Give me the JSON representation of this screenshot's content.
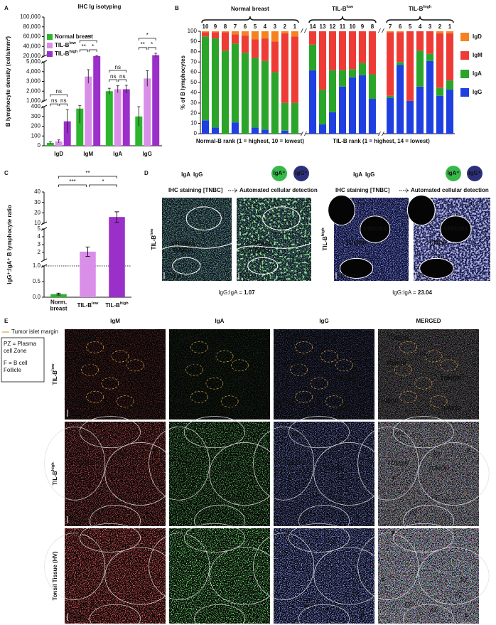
{
  "chart_data": [
    {
      "type": "bar",
      "panel_label": "A",
      "title": "IHC Ig isotyping",
      "y_label": "B lymphocyte density (cells/mm²)",
      "categories": [
        "IgD",
        "IgM",
        "IgA",
        "IgG"
      ],
      "series": [
        {
          "name": {
            "text": "Normal breast"
          },
          "color": "#2db52d",
          "values": [
            30,
            380,
            2000,
            300
          ],
          "errors": [
            10,
            150,
            300,
            100
          ]
        },
        {
          "name": {
            "text": "TIL-B",
            "sup": "low"
          },
          "color": "#d98fe8",
          "values": [
            45,
            3500,
            2200,
            3300
          ],
          "errors": [
            15,
            700,
            350,
            800
          ]
        },
        {
          "name": {
            "text": "TIL-B",
            "sup": "high"
          },
          "color": "#9b2fc9",
          "values": [
            250,
            20000,
            2200,
            22000
          ],
          "errors": [
            120,
            1500,
            400,
            4000
          ]
        }
      ],
      "ylim": [
        0,
        100000
      ],
      "ysegments": [
        [
          0,
          400
        ],
        [
          1000,
          5000
        ],
        [
          20000,
          100000
        ]
      ],
      "yticks": [
        0,
        100,
        200,
        300,
        400,
        {
          "value": 1000,
          "label": "1,000"
        },
        {
          "value": 2000,
          "label": "2,000"
        },
        {
          "value": 3000,
          "label": "3,000"
        },
        {
          "value": 4000,
          "label": "4,000"
        },
        {
          "value": 5000,
          "label": "5,000"
        },
        {
          "value": 20000,
          "label": "20,000"
        },
        {
          "value": 40000,
          "label": "40,000"
        },
        {
          "value": 60000,
          "label": "60,000"
        },
        {
          "value": 80000,
          "label": "80,000"
        },
        {
          "value": 100000,
          "label": "100,000"
        }
      ],
      "significance": [
        [
          "ns",
          "ns",
          "ns"
        ],
        [
          "***",
          "**",
          "*"
        ],
        [
          "ns",
          "ns",
          "ns"
        ],
        [
          "*",
          "**",
          "*"
        ]
      ]
    },
    {
      "type": "stacked_bar",
      "panel_label": "B",
      "y_label": "% of B lymphocytes",
      "ylim": [
        0,
        100
      ],
      "yticks": [
        0,
        10,
        20,
        30,
        40,
        50,
        60,
        70,
        80,
        90,
        100
      ],
      "series": [
        {
          "name": "IgD",
          "color": "#f5821f"
        },
        {
          "name": "IgM",
          "color": "#ee3b36"
        },
        {
          "name": "IgA",
          "color": "#2aa52a"
        },
        {
          "name": "IgG",
          "color": "#1f3fe0"
        }
      ],
      "x_labels": [
        "Normal-B rank (1 = highest, 10 = lowest)",
        "TIL-B rank (1 = highest, 14 = lowest)"
      ],
      "groups": [
        {
          "label": {
            "text": "Normal breast"
          },
          "categories": [
            "10",
            "9",
            "8",
            "7",
            "6",
            "5",
            "4",
            "3",
            "2",
            "1"
          ],
          "series": [
            {
              "values": [
                1,
                1,
                1,
                3,
                4,
                8,
                7,
                10,
                2,
                5
              ]
            },
            {
              "values": [
                4,
                6,
                18,
                9,
                17,
                18,
                22,
                30,
                68,
                65
              ]
            },
            {
              "values": [
                82,
                87,
                81,
                77,
                79,
                68,
                67,
                60,
                27,
                30
              ]
            },
            {
              "values": [
                13,
                6,
                0,
                11,
                0,
                6,
                4,
                0,
                3,
                0
              ]
            }
          ]
        },
        {
          "label": {
            "text": "TIL-B",
            "sup": "low"
          },
          "categories": [
            "14",
            "13",
            "12",
            "11",
            "10",
            "9",
            "8"
          ],
          "series": [
            {
              "values": [
                0,
                0,
                0,
                0,
                0,
                0,
                0
              ]
            },
            {
              "values": [
                13,
                57,
                38,
                38,
                37,
                31,
                42
              ]
            },
            {
              "values": [
                25,
                34,
                41,
                16,
                8,
                12,
                24
              ]
            },
            {
              "values": [
                62,
                9,
                21,
                46,
                55,
                57,
                34
              ]
            }
          ]
        },
        {
          "label": {
            "text": "TIL-B",
            "sup": "high"
          },
          "categories": [
            "7",
            "6",
            "5",
            "4",
            "3",
            "2",
            "1"
          ],
          "series": [
            {
              "values": [
                1,
                1,
                0,
                0,
                0,
                2,
                2
              ]
            },
            {
              "values": [
                62,
                29,
                68,
                19,
                22,
                53,
                46
              ]
            },
            {
              "values": [
                2,
                3,
                0,
                35,
                7,
                8,
                9
              ]
            },
            {
              "values": [
                35,
                67,
                32,
                46,
                71,
                37,
                43
              ]
            }
          ]
        }
      ]
    },
    {
      "type": "bar",
      "panel_label": "C",
      "y_label": "IgG⁺:IgA⁺ B lymphocyte ratio",
      "categories": [
        {
          "lines": [
            "Norm.",
            "breast"
          ]
        },
        {
          "text": "TIL-B",
          "sup": "low"
        },
        {
          "text": "TIL-B",
          "sup": "high"
        }
      ],
      "values": [
        0.1,
        2.1,
        16
      ],
      "errors": [
        0.03,
        0.6,
        5
      ],
      "colors": [
        "#2db52d",
        "#d98fe8",
        "#9b2fc9"
      ],
      "ylim": [
        0,
        40
      ],
      "ysegments": [
        [
          0,
          1
        ],
        [
          1,
          5
        ],
        [
          10,
          40
        ]
      ],
      "yticks": [
        {
          "value": 0,
          "label": "0.0"
        },
        {
          "value": 0.5,
          "label": "0.5"
        },
        {
          "value": 1,
          "label": "1.0"
        },
        2,
        3,
        4,
        5,
        10,
        20,
        30,
        40
      ],
      "ref_line": 1,
      "significance": [
        "**",
        "***",
        "*"
      ]
    }
  ],
  "panel_d": {
    "panel_label": "D",
    "panels": [
      {
        "row_label": {
          "text": "TIL-B",
          "sup": "low"
        },
        "stain_a": "IgA",
        "stain_b": "IgG",
        "method_a": "IHC staining [TNBC]",
        "method_b": "Automated cellular detection",
        "marker_a": "IgA⁺",
        "marker_b": "IgG⁺",
        "regions": [
          "STROMA",
          "TUMOR"
        ],
        "scale": "100 µm",
        "ratio_label": "IgG:IgA = ",
        "ratio": "1.07"
      },
      {
        "row_label": {
          "text": "TIL-B",
          "sup": "high"
        },
        "stain_a": "IgA",
        "stain_b": "IgG",
        "method_a": "IHC staining [TNBC]",
        "method_b": "Automated cellular detection",
        "marker_a": "IgA⁺",
        "marker_b": "IgG⁺",
        "regions": [
          "STROMA",
          "TUMOR"
        ],
        "scale": "100 µm",
        "ratio_label": "IgG:IgA = ",
        "ratio": "23.04"
      }
    ]
  },
  "panel_e": {
    "panel_label": "E",
    "columns": [
      {
        "name": "IgM",
        "color": "#e8343a"
      },
      {
        "name": "IgA",
        "color": "#7ccf6b"
      },
      {
        "name": "IgG",
        "color": "#3b55c9"
      },
      {
        "name": "MERGED",
        "color": "#2a2a2a"
      }
    ],
    "legend": {
      "margin": "Tumor islet margin",
      "entries": [
        [
          "PZ = Plasma",
          "cell Zone"
        ],
        [
          "F = B cell",
          "Follicle"
        ]
      ]
    },
    "rows": [
      {
        "label": {
          "text": "TIL-B",
          "sup": "low"
        },
        "scale": "100 µm",
        "regions": [
          "TUMOR",
          "PZ",
          "TUMOR",
          "TUMOR",
          "TUMOR",
          "TUMOR"
        ]
      },
      {
        "label": {
          "text": "TIL-B",
          "sup": "high"
        },
        "scale": "100µm",
        "regions": [
          "PZ",
          "TUMOR",
          "PZ",
          "TUMOR",
          "F",
          "F",
          {
            "text": "PZ",
            "sub": "(intratumoral)"
          },
          "PZ"
        ]
      },
      {
        "label": {
          "text": "Tonsil Tissue (HV)"
        },
        "scale": "100 µm",
        "regions": [
          "F",
          "F",
          "PZ",
          "PZ",
          "PZ",
          "PZ",
          "F"
        ]
      }
    ]
  }
}
